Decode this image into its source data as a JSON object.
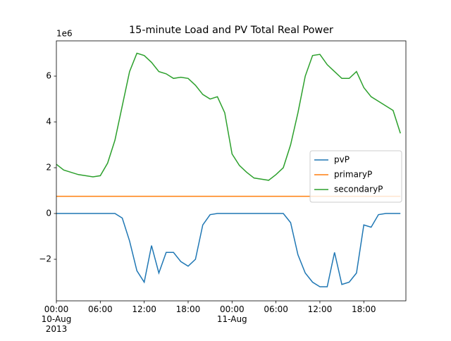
{
  "chart_data": {
    "type": "line",
    "title": "15-minute Load and PV Total Real Power",
    "offset_text": "1e6",
    "x": [
      "2013-08-10T00:00",
      "2013-08-10T01:00",
      "2013-08-10T02:00",
      "2013-08-10T03:00",
      "2013-08-10T04:00",
      "2013-08-10T05:00",
      "2013-08-10T06:00",
      "2013-08-10T07:00",
      "2013-08-10T08:00",
      "2013-08-10T09:00",
      "2013-08-10T10:00",
      "2013-08-10T11:00",
      "2013-08-10T12:00",
      "2013-08-10T13:00",
      "2013-08-10T14:00",
      "2013-08-10T15:00",
      "2013-08-10T16:00",
      "2013-08-10T17:00",
      "2013-08-10T18:00",
      "2013-08-10T19:00",
      "2013-08-10T20:00",
      "2013-08-10T21:00",
      "2013-08-10T22:00",
      "2013-08-10T23:00",
      "2013-08-11T00:00",
      "2013-08-11T01:00",
      "2013-08-11T02:00",
      "2013-08-11T03:00",
      "2013-08-11T04:00",
      "2013-08-11T05:00",
      "2013-08-11T06:00",
      "2013-08-11T07:00",
      "2013-08-11T08:00",
      "2013-08-11T09:00",
      "2013-08-11T10:00",
      "2013-08-11T11:00",
      "2013-08-11T12:00",
      "2013-08-11T13:00",
      "2013-08-11T14:00",
      "2013-08-11T15:00",
      "2013-08-11T16:00",
      "2013-08-11T17:00",
      "2013-08-11T18:00",
      "2013-08-11T19:00",
      "2013-08-11T20:00",
      "2013-08-11T21:00",
      "2013-08-11T22:00",
      "2013-08-11T23:00"
    ],
    "series": [
      {
        "name": "pvP",
        "color": "#1f77b4",
        "values": [
          0,
          0,
          0,
          0,
          0,
          0,
          0,
          0,
          0,
          -0.2,
          -1.2,
          -2.5,
          -3.0,
          -1.4,
          -2.6,
          -1.7,
          -1.7,
          -2.1,
          -2.3,
          -2.0,
          -0.5,
          -0.05,
          0,
          0,
          0,
          0,
          0,
          0,
          0,
          0,
          0,
          0,
          -0.4,
          -1.8,
          -2.6,
          -3.0,
          -3.2,
          -3.2,
          -1.7,
          -3.1,
          -3.0,
          -2.6,
          -0.5,
          -0.6,
          -0.05,
          0,
          0,
          0
        ]
      },
      {
        "name": "primaryP",
        "color": "#ff7f0e",
        "values": [
          0.75,
          0.75,
          0.75,
          0.75,
          0.75,
          0.75,
          0.75,
          0.75,
          0.75,
          0.75,
          0.75,
          0.75,
          0.75,
          0.75,
          0.75,
          0.75,
          0.75,
          0.75,
          0.75,
          0.75,
          0.75,
          0.75,
          0.75,
          0.75,
          0.75,
          0.75,
          0.75,
          0.75,
          0.75,
          0.75,
          0.75,
          0.75,
          0.75,
          0.75,
          0.75,
          0.75,
          0.75,
          0.75,
          0.75,
          0.75,
          0.75,
          0.75,
          0.75,
          0.75,
          0.75,
          0.75,
          0.75,
          0.75
        ]
      },
      {
        "name": "secondaryP",
        "color": "#2ca02c",
        "values": [
          2.15,
          1.9,
          1.8,
          1.7,
          1.65,
          1.6,
          1.65,
          2.2,
          3.2,
          4.7,
          6.2,
          7.0,
          6.9,
          6.6,
          6.2,
          6.1,
          5.9,
          5.95,
          5.9,
          5.6,
          5.2,
          5.0,
          5.1,
          4.4,
          2.6,
          2.1,
          1.8,
          1.55,
          1.5,
          1.45,
          1.7,
          2.0,
          3.0,
          4.4,
          6.0,
          6.9,
          6.95,
          6.5,
          6.2,
          5.9,
          5.9,
          6.2,
          5.5,
          5.1,
          4.9,
          4.7,
          4.5,
          3.5
        ]
      }
    ],
    "xlim": [
      "2013-08-10T00:00",
      "2013-08-11T23:45"
    ],
    "xticks": [
      {
        "value": "2013-08-10T00:00",
        "label": "00:00\n10-Aug\n2013"
      },
      {
        "value": "2013-08-10T06:00",
        "label": "06:00"
      },
      {
        "value": "2013-08-10T12:00",
        "label": "12:00"
      },
      {
        "value": "2013-08-10T18:00",
        "label": "18:00"
      },
      {
        "value": "2013-08-11T00:00",
        "label": "00:00\n11-Aug"
      },
      {
        "value": "2013-08-11T06:00",
        "label": "06:00"
      },
      {
        "value": "2013-08-11T12:00",
        "label": "12:00"
      },
      {
        "value": "2013-08-11T18:00",
        "label": "18:00"
      }
    ],
    "ylim": [
      -3.815,
      7.54
    ],
    "yticks": [
      {
        "value": -2,
        "label": "−2"
      },
      0,
      2,
      4,
      6
    ],
    "legend": "center right"
  }
}
